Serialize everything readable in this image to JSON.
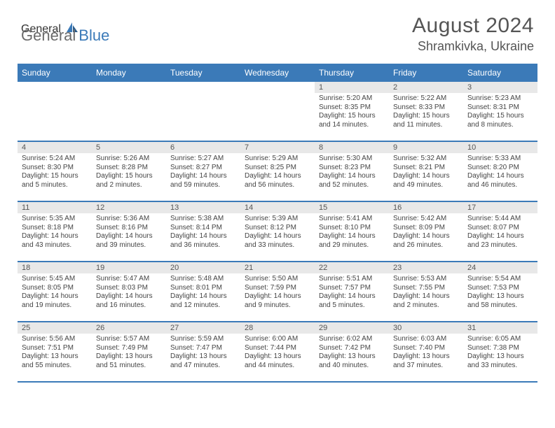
{
  "brand": {
    "part1": "General",
    "part2": "Blue"
  },
  "title": "August 2024",
  "location": "Shramkivka, Ukraine",
  "colors": {
    "header_bg": "#3b7ab8",
    "header_text": "#ffffff",
    "daynum_bg": "#e8e8e8",
    "body_text": "#444444",
    "title_text": "#555555"
  },
  "weekdays": [
    "Sunday",
    "Monday",
    "Tuesday",
    "Wednesday",
    "Thursday",
    "Friday",
    "Saturday"
  ],
  "first_day_of_week_index": 4,
  "days": [
    {
      "n": "1",
      "sunrise": "5:20 AM",
      "sunset": "8:35 PM",
      "daylight": "15 hours and 14 minutes."
    },
    {
      "n": "2",
      "sunrise": "5:22 AM",
      "sunset": "8:33 PM",
      "daylight": "15 hours and 11 minutes."
    },
    {
      "n": "3",
      "sunrise": "5:23 AM",
      "sunset": "8:31 PM",
      "daylight": "15 hours and 8 minutes."
    },
    {
      "n": "4",
      "sunrise": "5:24 AM",
      "sunset": "8:30 PM",
      "daylight": "15 hours and 5 minutes."
    },
    {
      "n": "5",
      "sunrise": "5:26 AM",
      "sunset": "8:28 PM",
      "daylight": "15 hours and 2 minutes."
    },
    {
      "n": "6",
      "sunrise": "5:27 AM",
      "sunset": "8:27 PM",
      "daylight": "14 hours and 59 minutes."
    },
    {
      "n": "7",
      "sunrise": "5:29 AM",
      "sunset": "8:25 PM",
      "daylight": "14 hours and 56 minutes."
    },
    {
      "n": "8",
      "sunrise": "5:30 AM",
      "sunset": "8:23 PM",
      "daylight": "14 hours and 52 minutes."
    },
    {
      "n": "9",
      "sunrise": "5:32 AM",
      "sunset": "8:21 PM",
      "daylight": "14 hours and 49 minutes."
    },
    {
      "n": "10",
      "sunrise": "5:33 AM",
      "sunset": "8:20 PM",
      "daylight": "14 hours and 46 minutes."
    },
    {
      "n": "11",
      "sunrise": "5:35 AM",
      "sunset": "8:18 PM",
      "daylight": "14 hours and 43 minutes."
    },
    {
      "n": "12",
      "sunrise": "5:36 AM",
      "sunset": "8:16 PM",
      "daylight": "14 hours and 39 minutes."
    },
    {
      "n": "13",
      "sunrise": "5:38 AM",
      "sunset": "8:14 PM",
      "daylight": "14 hours and 36 minutes."
    },
    {
      "n": "14",
      "sunrise": "5:39 AM",
      "sunset": "8:12 PM",
      "daylight": "14 hours and 33 minutes."
    },
    {
      "n": "15",
      "sunrise": "5:41 AM",
      "sunset": "8:10 PM",
      "daylight": "14 hours and 29 minutes."
    },
    {
      "n": "16",
      "sunrise": "5:42 AM",
      "sunset": "8:09 PM",
      "daylight": "14 hours and 26 minutes."
    },
    {
      "n": "17",
      "sunrise": "5:44 AM",
      "sunset": "8:07 PM",
      "daylight": "14 hours and 23 minutes."
    },
    {
      "n": "18",
      "sunrise": "5:45 AM",
      "sunset": "8:05 PM",
      "daylight": "14 hours and 19 minutes."
    },
    {
      "n": "19",
      "sunrise": "5:47 AM",
      "sunset": "8:03 PM",
      "daylight": "14 hours and 16 minutes."
    },
    {
      "n": "20",
      "sunrise": "5:48 AM",
      "sunset": "8:01 PM",
      "daylight": "14 hours and 12 minutes."
    },
    {
      "n": "21",
      "sunrise": "5:50 AM",
      "sunset": "7:59 PM",
      "daylight": "14 hours and 9 minutes."
    },
    {
      "n": "22",
      "sunrise": "5:51 AM",
      "sunset": "7:57 PM",
      "daylight": "14 hours and 5 minutes."
    },
    {
      "n": "23",
      "sunrise": "5:53 AM",
      "sunset": "7:55 PM",
      "daylight": "14 hours and 2 minutes."
    },
    {
      "n": "24",
      "sunrise": "5:54 AM",
      "sunset": "7:53 PM",
      "daylight": "13 hours and 58 minutes."
    },
    {
      "n": "25",
      "sunrise": "5:56 AM",
      "sunset": "7:51 PM",
      "daylight": "13 hours and 55 minutes."
    },
    {
      "n": "26",
      "sunrise": "5:57 AM",
      "sunset": "7:49 PM",
      "daylight": "13 hours and 51 minutes."
    },
    {
      "n": "27",
      "sunrise": "5:59 AM",
      "sunset": "7:47 PM",
      "daylight": "13 hours and 47 minutes."
    },
    {
      "n": "28",
      "sunrise": "6:00 AM",
      "sunset": "7:44 PM",
      "daylight": "13 hours and 44 minutes."
    },
    {
      "n": "29",
      "sunrise": "6:02 AM",
      "sunset": "7:42 PM",
      "daylight": "13 hours and 40 minutes."
    },
    {
      "n": "30",
      "sunrise": "6:03 AM",
      "sunset": "7:40 PM",
      "daylight": "13 hours and 37 minutes."
    },
    {
      "n": "31",
      "sunrise": "6:05 AM",
      "sunset": "7:38 PM",
      "daylight": "13 hours and 33 minutes."
    }
  ],
  "labels": {
    "sunrise": "Sunrise: ",
    "sunset": "Sunset: ",
    "daylight": "Daylight: "
  }
}
